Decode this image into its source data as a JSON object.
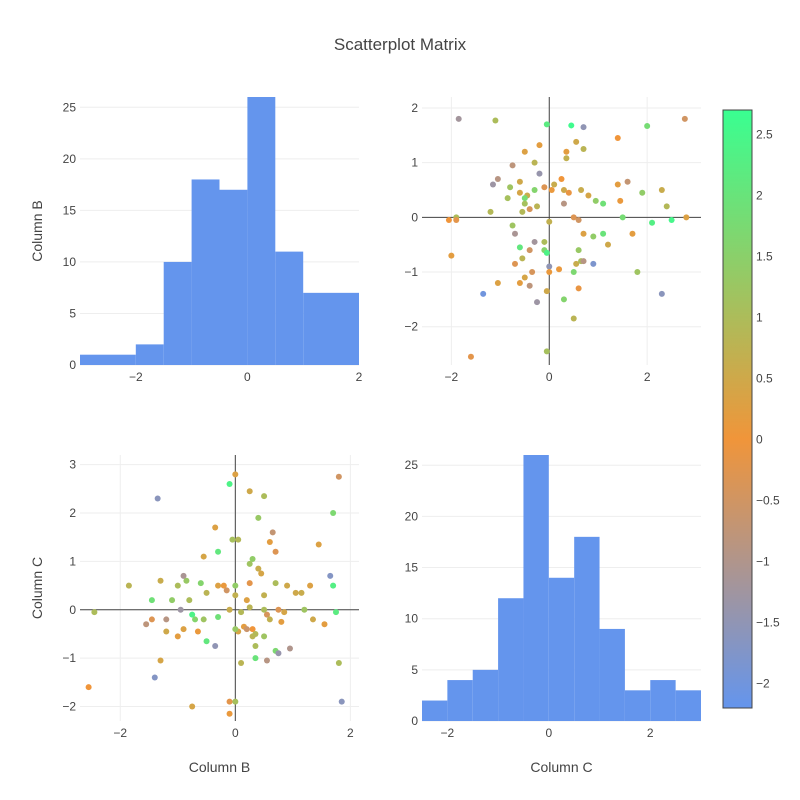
{
  "chart_data": {
    "title": "Scatterplot Matrix",
    "colors": {
      "bar": "#6495ed",
      "colorscale": [
        "#6495ed",
        "#f0953a",
        "#39ff91"
      ]
    },
    "colorbar": {
      "range": [
        -2.2,
        2.7
      ],
      "ticks": [
        "2.5",
        "2",
        "1.5",
        "1",
        "0.5",
        "0",
        "−0.5",
        "−1",
        "−1.5",
        "−2"
      ],
      "tick_values": [
        2.5,
        2,
        1.5,
        1,
        0.5,
        0,
        -0.5,
        -1,
        -1.5,
        -2
      ]
    },
    "panels": [
      {
        "type": "bar",
        "name": "hist-column-b",
        "xlabel": "",
        "ylabel": "Column B",
        "xlim": [
          -3,
          2
        ],
        "ylim": [
          0,
          26
        ],
        "xticks": [
          "−2",
          "0",
          "2"
        ],
        "xtick_values": [
          -2,
          0,
          2
        ],
        "yticks": [
          "0",
          "5",
          "10",
          "15",
          "20",
          "25"
        ],
        "ytick_values": [
          0,
          5,
          10,
          15,
          20,
          25
        ],
        "bins": [
          [
            -3,
            -2,
            1
          ],
          [
            -2,
            -1.5,
            2
          ],
          [
            -1.5,
            -1,
            10
          ],
          [
            -1,
            -0.5,
            18
          ],
          [
            -0.5,
            0,
            17
          ],
          [
            0,
            0.5,
            26
          ],
          [
            0.5,
            1,
            11
          ],
          [
            1,
            2,
            7
          ]
        ]
      },
      {
        "type": "scatter",
        "name": "scatter-c-vs-b",
        "xlabel": "",
        "ylabel": "",
        "xlim": [
          -2.6,
          3.1
        ],
        "ylim": [
          -2.7,
          2.2
        ],
        "xticks": [
          "−2",
          "0",
          "2"
        ],
        "xtick_values": [
          -2,
          0,
          2
        ],
        "yticks": [
          "−2",
          "−1",
          "0",
          "1",
          "2"
        ],
        "ytick_values": [
          -2,
          -1,
          0,
          1,
          2
        ],
        "points": [
          [
            -1.85,
            1.8,
            -1.2
          ],
          [
            -1.1,
            1.77,
            1.0
          ],
          [
            -0.05,
            1.7,
            2.2
          ],
          [
            0.45,
            1.68,
            2.6
          ],
          [
            0.7,
            1.65,
            -1.5
          ],
          [
            2.0,
            1.67,
            1.8
          ],
          [
            2.77,
            1.8,
            -0.5
          ],
          [
            0.55,
            1.38,
            0.5
          ],
          [
            0.35,
            1.2,
            0.2
          ],
          [
            0.35,
            1.08,
            0.7
          ],
          [
            1.4,
            1.45,
            0.0
          ],
          [
            0.7,
            1.25,
            0.8
          ],
          [
            -0.5,
            1.2,
            0.3
          ],
          [
            -0.2,
            1.32,
            0.2
          ],
          [
            -0.75,
            0.95,
            -0.8
          ],
          [
            -0.2,
            0.8,
            -1.4
          ],
          [
            -1.05,
            0.7,
            -0.9
          ],
          [
            -0.6,
            0.65,
            0.5
          ],
          [
            0.1,
            0.6,
            0.6
          ],
          [
            -1.15,
            0.6,
            -1.3
          ],
          [
            -0.8,
            0.55,
            1.2
          ],
          [
            -0.6,
            0.45,
            0.4
          ],
          [
            -0.3,
            0.5,
            1.6
          ],
          [
            -0.45,
            0.4,
            0.6
          ],
          [
            0.05,
            0.5,
            0.1
          ],
          [
            -0.1,
            0.55,
            -0.3
          ],
          [
            0.3,
            0.5,
            0.5
          ],
          [
            0.4,
            0.45,
            -0.1
          ],
          [
            0.65,
            0.5,
            0.6
          ],
          [
            0.8,
            0.4,
            0.4
          ],
          [
            0.95,
            0.3,
            1.4
          ],
          [
            1.4,
            0.6,
            0.2
          ],
          [
            1.6,
            0.65,
            -0.7
          ],
          [
            1.9,
            0.45,
            1.4
          ],
          [
            2.3,
            0.5,
            0.6
          ],
          [
            1.45,
            0.3,
            0.1
          ],
          [
            0.3,
            0.25,
            -0.9
          ],
          [
            -0.5,
            0.35,
            1.8
          ],
          [
            -0.85,
            0.35,
            1.1
          ],
          [
            -0.25,
            0.2,
            0.8
          ],
          [
            -0.55,
            0.1,
            0.9
          ],
          [
            -1.2,
            0.1,
            0.9
          ],
          [
            -1.9,
            0.0,
            1.0
          ],
          [
            -2.05,
            -0.05,
            0.0
          ],
          [
            -1.9,
            -0.05,
            -0.2
          ],
          [
            -0.75,
            -0.15,
            1.2
          ],
          [
            -0.4,
            0.15,
            -0.4
          ],
          [
            -0.5,
            0.25,
            1.1
          ],
          [
            0.0,
            -0.08,
            0.7
          ],
          [
            0.5,
            0.0,
            -0.3
          ],
          [
            0.6,
            -0.05,
            -0.5
          ],
          [
            0.7,
            -0.3,
            0.3
          ],
          [
            0.9,
            -0.35,
            1.4
          ],
          [
            1.1,
            -0.3,
            2.0
          ],
          [
            1.5,
            0.0,
            1.8
          ],
          [
            1.7,
            -0.3,
            0.2
          ],
          [
            2.4,
            0.2,
            0.9
          ],
          [
            2.8,
            0.0,
            0.3
          ],
          [
            2.5,
            -0.05,
            2.5
          ],
          [
            -0.7,
            -0.3,
            -1.1
          ],
          [
            -0.3,
            -0.45,
            -1.2
          ],
          [
            -0.6,
            -0.55,
            2.1
          ],
          [
            -0.4,
            -0.6,
            -0.5
          ],
          [
            -0.1,
            -0.45,
            1.0
          ],
          [
            -0.1,
            -0.6,
            1.6
          ],
          [
            -0.05,
            -0.65,
            2.4
          ],
          [
            -0.55,
            -0.75,
            0.8
          ],
          [
            -0.7,
            -0.85,
            -0.3
          ],
          [
            0.0,
            -0.9,
            -1.5
          ],
          [
            0.2,
            -0.95,
            0.1
          ],
          [
            0.5,
            -1.0,
            1.7
          ],
          [
            0.55,
            -0.85,
            0.6
          ],
          [
            0.6,
            -0.6,
            1.3
          ],
          [
            0.65,
            -0.8,
            1.0
          ],
          [
            0.7,
            -0.8,
            -0.9
          ],
          [
            0.9,
            -0.85,
            -1.8
          ],
          [
            1.2,
            -0.5,
            0.5
          ],
          [
            1.8,
            -1.0,
            1.2
          ],
          [
            0.0,
            -1.0,
            0.1
          ],
          [
            -0.35,
            -1.0,
            -0.4
          ],
          [
            -0.5,
            -1.1,
            0.4
          ],
          [
            -0.6,
            -1.2,
            0.2
          ],
          [
            -1.05,
            -1.2,
            0.3
          ],
          [
            -0.4,
            -1.25,
            -0.8
          ],
          [
            -0.05,
            -1.35,
            0.5
          ],
          [
            0.6,
            -1.3,
            -0.1
          ],
          [
            -0.25,
            -1.55,
            -1.3
          ],
          [
            0.3,
            -1.5,
            1.6
          ],
          [
            -1.35,
            -1.4,
            -2.0
          ],
          [
            2.3,
            -1.4,
            -1.6
          ],
          [
            0.5,
            -1.85,
            0.8
          ],
          [
            -0.05,
            -2.45,
            1.1
          ],
          [
            -1.6,
            -2.55,
            -0.2
          ],
          [
            -2.0,
            -0.7,
            0.2
          ],
          [
            1.1,
            0.25,
            1.9
          ],
          [
            0.25,
            0.7,
            0.0
          ],
          [
            -0.3,
            1.0,
            0.8
          ],
          [
            2.1,
            -0.1,
            2.3
          ]
        ]
      },
      {
        "type": "scatter",
        "name": "scatter-b-vs-c",
        "xlabel": "Column B",
        "ylabel": "Column C",
        "xlim": [
          -2.7,
          2.15
        ],
        "ylim": [
          -2.3,
          3.2
        ],
        "xticks": [
          "−2",
          "0",
          "2"
        ],
        "xtick_values": [
          -2,
          0,
          2
        ],
        "yticks": [
          "−2",
          "−1",
          "0",
          "1",
          "2",
          "3"
        ],
        "ytick_values": [
          -2,
          -1,
          0,
          1,
          2,
          3
        ],
        "points": [
          [
            0.0,
            2.8,
            0.3
          ],
          [
            1.8,
            2.75,
            -0.5
          ],
          [
            -0.1,
            2.6,
            2.4
          ],
          [
            0.25,
            2.45,
            0.5
          ],
          [
            0.5,
            2.35,
            1.0
          ],
          [
            -1.35,
            2.3,
            -1.6
          ],
          [
            0.4,
            1.9,
            1.3
          ],
          [
            1.7,
            2.0,
            1.7
          ],
          [
            -0.35,
            1.7,
            0.3
          ],
          [
            0.65,
            1.6,
            -0.7
          ],
          [
            -0.05,
            1.45,
            1.1
          ],
          [
            0.05,
            1.45,
            0.9
          ],
          [
            0.6,
            1.4,
            0.2
          ],
          [
            1.45,
            1.35,
            0.3
          ],
          [
            -0.3,
            1.2,
            2.1
          ],
          [
            -0.55,
            1.1,
            0.4
          ],
          [
            0.3,
            1.05,
            1.4
          ],
          [
            0.25,
            0.95,
            1.2
          ],
          [
            0.4,
            0.85,
            0.6
          ],
          [
            0.45,
            0.75,
            0.4
          ],
          [
            -1.85,
            0.5,
            0.8
          ],
          [
            -1.3,
            0.6,
            0.6
          ],
          [
            -1.0,
            0.5,
            1.0
          ],
          [
            -0.85,
            0.6,
            1.3
          ],
          [
            -0.9,
            0.7,
            -1.1
          ],
          [
            -0.6,
            0.55,
            1.6
          ],
          [
            -0.3,
            0.5,
            0.3
          ],
          [
            0.0,
            0.5,
            1.4
          ],
          [
            0.25,
            0.55,
            -0.2
          ],
          [
            0.7,
            0.55,
            1.0
          ],
          [
            0.9,
            0.5,
            0.5
          ],
          [
            1.3,
            0.5,
            0.3
          ],
          [
            1.65,
            0.7,
            -1.7
          ],
          [
            1.7,
            0.5,
            2.3
          ],
          [
            1.05,
            0.35,
            0.5
          ],
          [
            1.15,
            0.35,
            0.6
          ],
          [
            0.2,
            0.2,
            0.3
          ],
          [
            0.5,
            0.3,
            0.7
          ],
          [
            -0.5,
            0.35,
            0.8
          ],
          [
            -1.45,
            0.2,
            1.9
          ],
          [
            -1.45,
            -0.2,
            -0.3
          ],
          [
            -1.2,
            -0.2,
            -0.9
          ],
          [
            -0.95,
            0.0,
            -1.3
          ],
          [
            -0.75,
            -0.1,
            2.4
          ],
          [
            -0.55,
            -0.2,
            1.2
          ],
          [
            -0.3,
            -0.15,
            1.9
          ],
          [
            0.1,
            -0.05,
            0.9
          ],
          [
            0.25,
            0.05,
            0.8
          ],
          [
            0.5,
            0.0,
            1.0
          ],
          [
            0.55,
            -0.1,
            -0.4
          ],
          [
            0.75,
            0.0,
            -0.3
          ],
          [
            0.6,
            -0.2,
            0.7
          ],
          [
            0.8,
            -0.25,
            0.2
          ],
          [
            1.35,
            -0.2,
            0.5
          ],
          [
            1.75,
            -0.05,
            2.2
          ],
          [
            -2.45,
            -0.05,
            1.0
          ],
          [
            -1.2,
            -0.45,
            0.5
          ],
          [
            -1.0,
            -0.55,
            0.2
          ],
          [
            -0.9,
            -0.4,
            0.3
          ],
          [
            -0.65,
            -0.45,
            0.1
          ],
          [
            -0.35,
            -0.75,
            -1.5
          ],
          [
            -0.5,
            -0.65,
            2.1
          ],
          [
            0.05,
            -0.45,
            0.4
          ],
          [
            0.15,
            -0.35,
            0.2
          ],
          [
            0.3,
            -0.55,
            0.8
          ],
          [
            0.35,
            -0.75,
            1.0
          ],
          [
            0.5,
            -0.55,
            1.2
          ],
          [
            0.7,
            -0.85,
            1.7
          ],
          [
            0.75,
            -0.9,
            -1.4
          ],
          [
            0.95,
            -0.8,
            -1.0
          ],
          [
            0.1,
            -1.1,
            0.8
          ],
          [
            0.35,
            -1.0,
            2.0
          ],
          [
            0.55,
            -1.05,
            -0.9
          ],
          [
            1.8,
            -1.1,
            1.0
          ],
          [
            -1.55,
            -0.3,
            -0.8
          ],
          [
            -1.3,
            -1.05,
            0.4
          ],
          [
            -1.4,
            -1.4,
            -1.7
          ],
          [
            -2.55,
            -1.6,
            0.0
          ],
          [
            -0.75,
            -2.0,
            0.4
          ],
          [
            -0.1,
            -1.9,
            -0.2
          ],
          [
            0.0,
            -1.9,
            1.1
          ],
          [
            -0.1,
            -2.15,
            0.1
          ],
          [
            1.85,
            -1.9,
            -1.6
          ],
          [
            -0.1,
            0.0,
            0.6
          ],
          [
            0.3,
            -0.4,
            0.0
          ],
          [
            -1.1,
            0.2,
            1.4
          ],
          [
            0.2,
            -0.4,
            -0.6
          ],
          [
            0.0,
            0.3,
            0.7
          ],
          [
            -0.8,
            0.2,
            1.0
          ],
          [
            0.7,
            1.2,
            -0.3
          ],
          [
            0.85,
            -0.05,
            0.4
          ],
          [
            1.55,
            -0.3,
            0.2
          ],
          [
            -0.2,
            0.5,
            0.1
          ],
          [
            0.0,
            -0.4,
            1.3
          ],
          [
            -0.7,
            -0.2,
            1.6
          ],
          [
            1.2,
            0.0,
            1.2
          ],
          [
            0.35,
            -0.5,
            0.9
          ],
          [
            -0.15,
            0.4,
            -0.5
          ]
        ]
      },
      {
        "type": "bar",
        "name": "hist-column-c",
        "xlabel": "Column C",
        "ylabel": "",
        "xlim": [
          -2.5,
          3
        ],
        "ylim": [
          0,
          26
        ],
        "xticks": [
          "−2",
          "0",
          "2"
        ],
        "xtick_values": [
          -2,
          0,
          2
        ],
        "yticks": [
          "0",
          "5",
          "10",
          "15",
          "20",
          "25"
        ],
        "ytick_values": [
          0,
          5,
          10,
          15,
          20,
          25
        ],
        "bins": [
          [
            -2.5,
            -2,
            2
          ],
          [
            -2,
            -1.5,
            4
          ],
          [
            -1.5,
            -1,
            5
          ],
          [
            -1,
            -0.5,
            12
          ],
          [
            -0.5,
            0,
            26
          ],
          [
            0,
            0.5,
            14
          ],
          [
            0.5,
            1,
            18
          ],
          [
            1,
            1.5,
            9
          ],
          [
            1.5,
            2,
            3
          ],
          [
            2,
            2.5,
            4
          ],
          [
            2.5,
            3,
            3
          ]
        ]
      }
    ]
  }
}
